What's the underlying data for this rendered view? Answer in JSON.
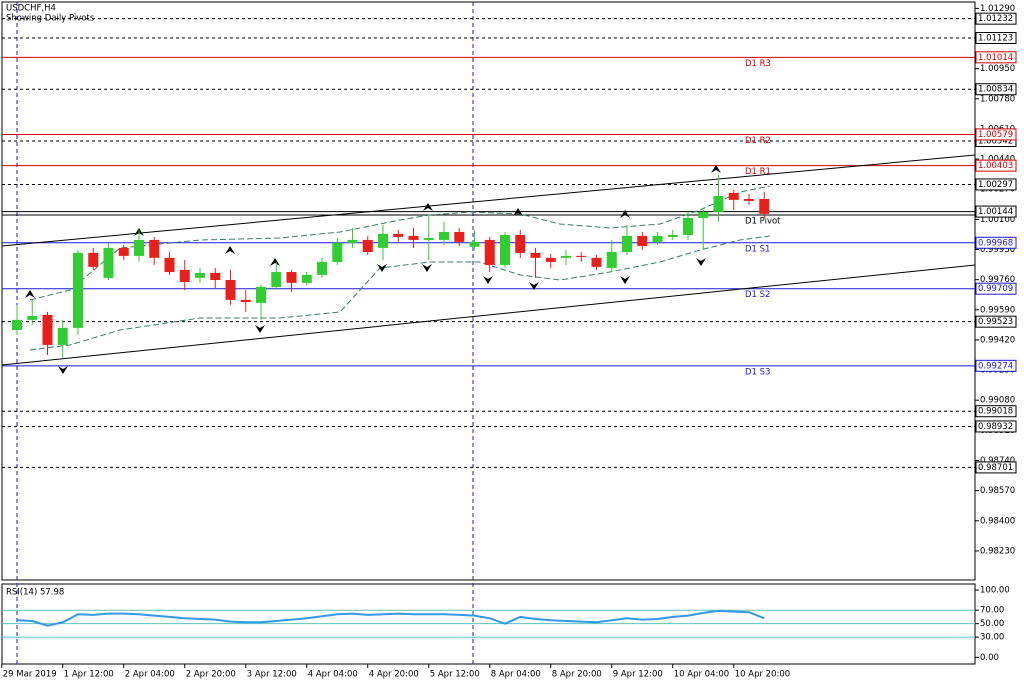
{
  "chart_data": {
    "type": "candlestick",
    "title": "USDCHF,H4",
    "subtitle": "Showing Daily Pivots",
    "x_labels": [
      "29 Mar 2019",
      "1 Apr 12:00",
      "2 Apr 04:00",
      "2 Apr 20:00",
      "3 Apr 12:00",
      "4 Apr 04:00",
      "4 Apr 20:00",
      "5 Apr 12:00",
      "8 Apr 04:00",
      "8 Apr 20:00",
      "9 Apr 12:00",
      "10 Apr 04:00",
      "10 Apr 20:00"
    ],
    "open": [
      0.99476,
      0.99533,
      0.99561,
      0.99392,
      0.99488,
      0.99911,
      0.9977,
      0.99939,
      0.99894,
      0.99984,
      0.99883,
      0.99815,
      0.9977,
      0.99798,
      0.99758,
      0.99646,
      0.99629,
      0.99719,
      0.99803,
      0.99742,
      0.99787,
      0.9986,
      0.99967,
      0.99984,
      0.99939,
      1.00018,
      1.00007,
      0.99984,
      0.99984,
      1.00029,
      0.99945,
      0.99984,
      0.99843,
      1.00012,
      0.99911,
      0.99883,
      0.99883,
      0.99894,
      0.99883,
      0.99826,
      0.99916,
      1.00007,
      0.99973,
      1.00001,
      1.00012,
      1.00108,
      1.00142,
      1.00249,
      1.00215,
      1.00215
    ],
    "high": [
      0.99617,
      0.99646,
      0.99578,
      0.99533,
      0.99928,
      0.99939,
      0.99967,
      0.99956,
      1.0004,
      1.00001,
      0.99916,
      0.99871,
      0.99826,
      0.99826,
      0.99815,
      0.99702,
      0.9973,
      0.9986,
      0.99815,
      0.99803,
      0.99883,
      0.99995,
      1.00052,
      1.00007,
      1.00069,
      1.0004,
      1.00052,
      1.00125,
      1.00086,
      1.00052,
      1.0004,
      1.00001,
      1.00029,
      1.0004,
      0.99939,
      0.99905,
      0.99928,
      0.99916,
      0.99899,
      0.99984,
      1.00069,
      1.00029,
      1.00029,
      1.0004,
      1.00142,
      1.00165,
      1.00351,
      1.00266,
      1.00243,
      1.00255
    ],
    "low": [
      0.99448,
      0.99505,
      0.99335,
      0.99319,
      0.99448,
      0.99815,
      0.99758,
      0.99871,
      0.9986,
      0.99843,
      0.99787,
      0.99702,
      0.99742,
      0.99713,
      0.99617,
      0.99578,
      0.99533,
      0.99702,
      0.99691,
      0.9973,
      0.9977,
      0.99843,
      0.99939,
      0.99899,
      0.99871,
      0.99973,
      0.99939,
      0.99871,
      0.99956,
      0.9995,
      0.99928,
      0.99803,
      0.99826,
      0.99883,
      0.9977,
      0.99826,
      0.99843,
      0.9986,
      0.99815,
      0.99803,
      0.99899,
      0.99928,
      0.99956,
      0.99984,
      0.99984,
      0.99928,
      1.00086,
      1.00153,
      1.00181,
      1.00108
    ],
    "close": [
      0.99533,
      0.99555,
      0.99392,
      0.99488,
      0.99911,
      0.99832,
      0.99939,
      0.99894,
      0.99984,
      0.99883,
      0.99803,
      0.99747,
      0.99798,
      0.99758,
      0.99646,
      0.99634,
      0.99719,
      0.99803,
      0.99742,
      0.99787,
      0.9986,
      0.99967,
      0.99984,
      0.99916,
      1.00018,
      1.00001,
      0.99984,
      0.99995,
      1.00029,
      0.99973,
      0.99973,
      0.99843,
      1.00012,
      0.99911,
      0.99883,
      0.9986,
      0.99894,
      0.99888,
      0.99832,
      0.99916,
      1.00007,
      0.9995,
      1.00007,
      1.00012,
      1.00108,
      1.00142,
      1.00232,
      1.0021,
      1.00204,
      1.00131
    ],
    "up_color": "#32cd32",
    "down_color": "#e8201c",
    "ylim": [
      0.98066,
      1.01326
    ],
    "yticks": [
      {
        "value": 1.0129,
        "label": "1.01290"
      },
      {
        "value": 1.0112,
        "label": "1.01120"
      },
      {
        "value": 1.0095,
        "label": "1.00950"
      },
      {
        "value": 1.0078,
        "label": "1.00780"
      },
      {
        "value": 1.0061,
        "label": "1.00610"
      },
      {
        "value": 1.0044,
        "label": "1.00440"
      },
      {
        "value": 1.0027,
        "label": "1.00270"
      },
      {
        "value": 1.001,
        "label": "1.00100"
      },
      {
        "value": 0.9993,
        "label": "0.99930"
      },
      {
        "value": 0.9976,
        "label": "0.99760"
      },
      {
        "value": 0.9959,
        "label": "0.99590"
      },
      {
        "value": 0.9942,
        "label": "0.99420"
      },
      {
        "value": 0.9925,
        "label": "0.99250"
      },
      {
        "value": 0.9908,
        "label": "0.99080"
      },
      {
        "value": 0.9891,
        "label": "0.98910"
      },
      {
        "value": 0.9874,
        "label": "0.98740"
      },
      {
        "value": 0.9857,
        "label": "0.98570"
      },
      {
        "value": 0.984,
        "label": "0.98400"
      },
      {
        "value": 0.9823,
        "label": "0.98230"
      }
    ],
    "levels": [
      {
        "value": 1.01232,
        "color": "#000000",
        "dashed": true
      },
      {
        "value": 1.01123,
        "color": "#000000",
        "dashed": true
      },
      {
        "value": 1.00834,
        "color": "#000000",
        "dashed": true
      },
      {
        "value": 1.00542,
        "color": "#000000",
        "dashed": true
      },
      {
        "value": 1.00297,
        "color": "#000000",
        "dashed": true
      },
      {
        "value": 1.00144,
        "color": "#000000",
        "dashed": false
      },
      {
        "value": 0.99523,
        "color": "#000000",
        "dashed": true
      },
      {
        "value": 0.99018,
        "color": "#000000",
        "dashed": true
      },
      {
        "value": 0.98932,
        "color": "#000000",
        "dashed": true
      },
      {
        "value": 0.98701,
        "color": "#000000",
        "dashed": true
      }
    ],
    "pivots": [
      {
        "name": "D1 R3",
        "value": 1.01014,
        "color": "#d40000",
        "boxed": true
      },
      {
        "name": "D1 R2",
        "value": 1.00579,
        "color": "#d40000",
        "boxed": true
      },
      {
        "name": "D1 R1",
        "value": 1.00403,
        "color": "#d40000",
        "boxed": true
      },
      {
        "name": "D1 Pivot",
        "value": 1.00125,
        "color": "#000000",
        "boxed": false
      },
      {
        "name": "D1 S1",
        "value": 0.99968,
        "color": "#1a1ad4",
        "boxed": true
      },
      {
        "name": "D1 S2",
        "value": 0.99709,
        "color": "#1a1ad4",
        "boxed": true
      },
      {
        "name": "D1 S3",
        "value": 0.99274,
        "color": "#1a1ad4",
        "boxed": true
      }
    ]
  },
  "rsi": {
    "type": "line",
    "title": "RSI(14) 57.98",
    "color": "#3399e6",
    "values": [
      55,
      54,
      47,
      52,
      64,
      63,
      65,
      65,
      64,
      62,
      60,
      58,
      57,
      56,
      53,
      52,
      52,
      54,
      56,
      58,
      61,
      64,
      65,
      63,
      64,
      65,
      64,
      64,
      64,
      63,
      62,
      58,
      50,
      60,
      57,
      55,
      54,
      53,
      52,
      55,
      58,
      56,
      57,
      60,
      62,
      66,
      69,
      68,
      67,
      57.98
    ],
    "ylim": [
      -10,
      109
    ],
    "yticks": [
      {
        "value": 100,
        "label": "100.00"
      },
      {
        "value": 70,
        "label": "70.00"
      },
      {
        "value": 50,
        "label": "50.00"
      },
      {
        "value": 30,
        "label": "30.00"
      },
      {
        "value": 0,
        "label": "0.00"
      }
    ],
    "level_lines": [
      70,
      50,
      30
    ],
    "level_color": "#5fc0c0"
  }
}
